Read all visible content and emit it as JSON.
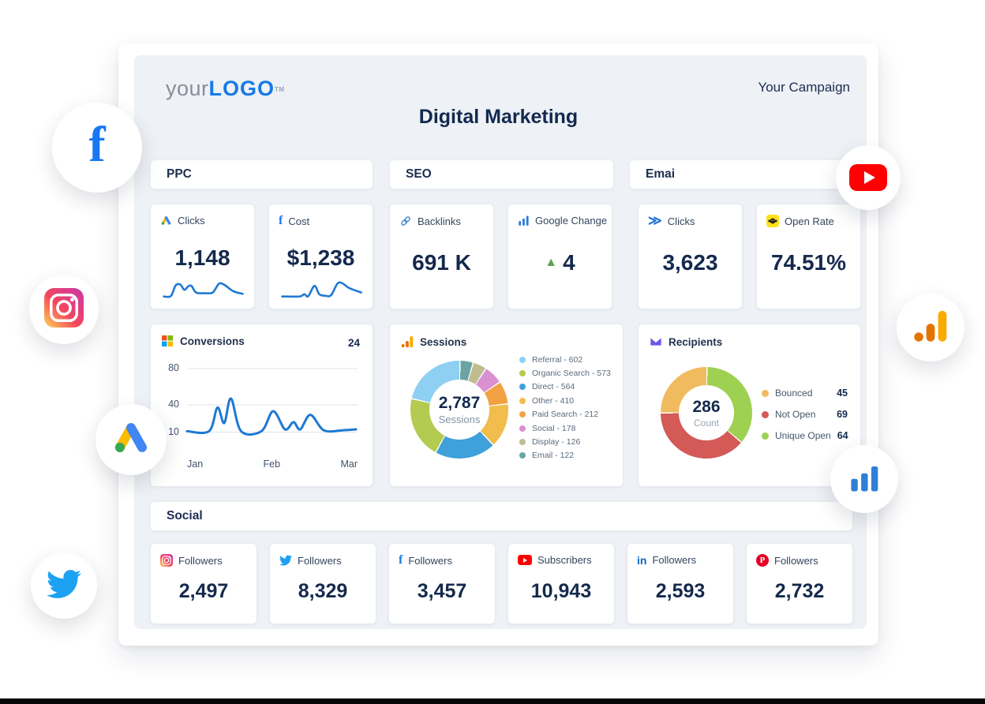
{
  "header": {
    "logo_prefix": "your",
    "logo_brand": "LOGO",
    "logo_tm": "TM",
    "campaign_label": "Your Campaign",
    "title": "Digital Marketing"
  },
  "ppc": {
    "header": "PPC",
    "cards": [
      {
        "icon": "google-ads-icon",
        "label": "Clicks",
        "value": "1,148",
        "spark": [
          [
            0,
            12
          ],
          [
            9,
            14
          ],
          [
            15,
            62
          ],
          [
            21,
            66
          ],
          [
            26,
            42
          ],
          [
            31,
            58
          ],
          [
            35,
            60
          ],
          [
            41,
            30
          ],
          [
            52,
            27
          ],
          [
            62,
            30
          ],
          [
            70,
            70
          ],
          [
            77,
            64
          ],
          [
            88,
            36
          ],
          [
            100,
            24
          ]
        ]
      },
      {
        "icon": "facebook-icon",
        "label": "Cost",
        "value": "$1,238",
        "spark": [
          [
            0,
            12
          ],
          [
            22,
            12
          ],
          [
            28,
            22
          ],
          [
            33,
            13
          ],
          [
            41,
            60
          ],
          [
            47,
            22
          ],
          [
            55,
            15
          ],
          [
            62,
            18
          ],
          [
            70,
            70
          ],
          [
            76,
            72
          ],
          [
            85,
            50
          ],
          [
            100,
            30
          ]
        ]
      }
    ]
  },
  "seo": {
    "header": "SEO",
    "cards": [
      {
        "icon": "link-icon",
        "label": "Backlinks",
        "value": "691 K"
      },
      {
        "icon": "bar-chart-icon",
        "label": "Google Change",
        "value": "4",
        "trend": "up"
      }
    ]
  },
  "email": {
    "header": "Emai",
    "cards": [
      {
        "icon": "send-icon",
        "label": "Clicks",
        "value": "3,623"
      },
      {
        "icon": "mailchimp-icon",
        "label": "Open Rate",
        "value": "74.51%"
      }
    ]
  },
  "social": {
    "header": "Social",
    "cards": [
      {
        "network": "instagram",
        "label": "Followers",
        "value": "2,497"
      },
      {
        "network": "twitter",
        "label": "Followers",
        "value": "8,329"
      },
      {
        "network": "facebook",
        "label": "Followers",
        "value": "3,457"
      },
      {
        "network": "youtube",
        "label": "Subscribers",
        "value": "10,943"
      },
      {
        "network": "linkedin",
        "label": "Followers",
        "value": "2,593"
      },
      {
        "network": "pinterest",
        "label": "Followers",
        "value": "2,732"
      }
    ]
  },
  "chart_data": [
    {
      "id": "conversions",
      "type": "line",
      "title": "Conversions",
      "badge": "24",
      "x_ticks": [
        "Jan",
        "Feb",
        "Mar"
      ],
      "y_ticks": [
        80,
        40,
        10
      ],
      "ylim": [
        0,
        90
      ],
      "grid": true,
      "line_color": "#1e79d2",
      "legend": "none",
      "points": [
        [
          0,
          11
        ],
        [
          13,
          11
        ],
        [
          18,
          37
        ],
        [
          22,
          20
        ],
        [
          26,
          47
        ],
        [
          32,
          11
        ],
        [
          44,
          11
        ],
        [
          51,
          33
        ],
        [
          58,
          13
        ],
        [
          63,
          21
        ],
        [
          67,
          13
        ],
        [
          73,
          29
        ],
        [
          81,
          12
        ],
        [
          92,
          12
        ],
        [
          100,
          13
        ]
      ]
    },
    {
      "id": "sessions",
      "type": "donut",
      "title": "Sessions",
      "center_value": "2,787",
      "center_label": "Sessions",
      "legend_style": "inline",
      "legend_position": "right",
      "series": [
        {
          "name": "Referral",
          "value": 602,
          "color": "#8ed0f2"
        },
        {
          "name": "Organic Search",
          "value": 573,
          "color": "#b3cb50"
        },
        {
          "name": "Direct",
          "value": 564,
          "color": "#3fa0da"
        },
        {
          "name": "Other",
          "value": 410,
          "color": "#f1bd4c"
        },
        {
          "name": "Paid Search",
          "value": 212,
          "color": "#f2a243"
        },
        {
          "name": "Social",
          "value": 178,
          "color": "#da90d1"
        },
        {
          "name": "Display",
          "value": 126,
          "color": "#bfbd8f"
        },
        {
          "name": "Email",
          "value": 122,
          "color": "#6ba4a3"
        }
      ]
    },
    {
      "id": "recipients",
      "type": "donut",
      "title": "Recipients",
      "center_value": "286",
      "center_label": "Count",
      "legend_style": "split",
      "legend_position": "right",
      "series": [
        {
          "name": "Bounced",
          "value": 45,
          "color": "#f0bb5e"
        },
        {
          "name": "Not Open",
          "value": 69,
          "color": "#d45a58"
        },
        {
          "name": "Unique Open",
          "value": 64,
          "color": "#9ed052"
        }
      ]
    }
  ],
  "glyphs": {
    "facebook": "f",
    "linkedin": "in",
    "pinterest": "P",
    "send": "≫",
    "trend_up": "▲"
  },
  "floating_icons": [
    "facebook",
    "instagram",
    "google-ads",
    "twitter",
    "youtube",
    "google-analytics",
    "bar-chart"
  ],
  "colors": {
    "accent_blue": "#1e79d2",
    "navy_text": "#14294d",
    "panel_bg": "#eef1f5",
    "positive_green": "#5ea351",
    "facebook": "#1877f2",
    "twitter": "#1da1f2",
    "linkedin": "#0a66c2",
    "youtube": "#ff0000",
    "pinterest": "#e60023",
    "mailchimp_yellow": "#ffe01b"
  }
}
